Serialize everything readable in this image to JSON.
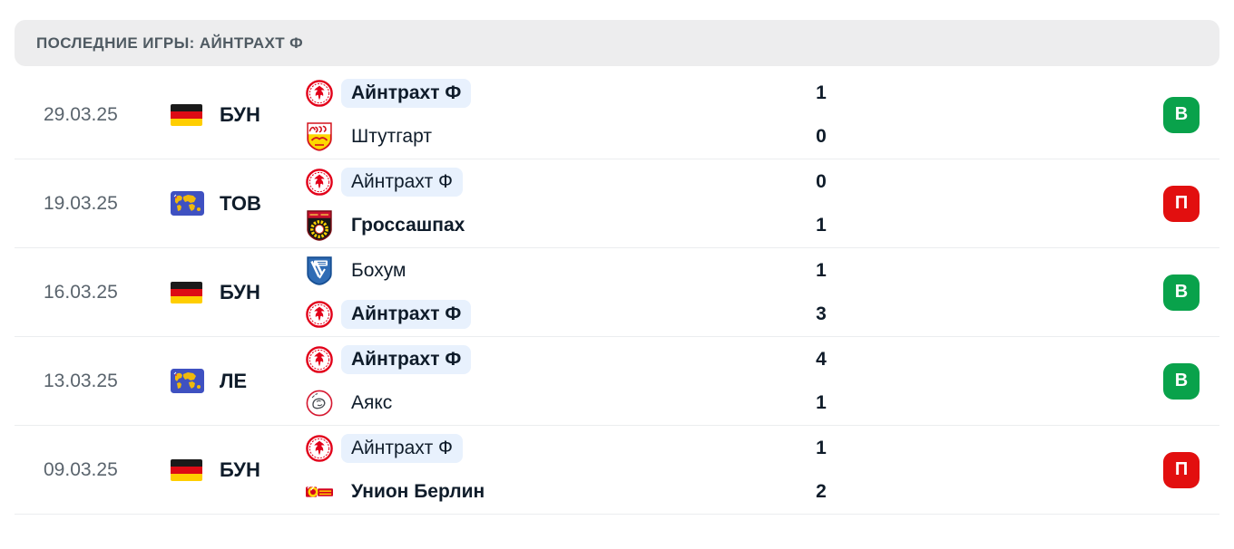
{
  "header": {
    "title": "ПОСЛЕДНИЕ ИГРЫ: АЙНТРАХТ Ф"
  },
  "colors": {
    "win_badge": "#09a24b",
    "loss_badge": "#e20f0f",
    "highlight_pill": "#e8f1fd",
    "header_bg": "#ededee"
  },
  "matches": [
    {
      "date": "29.03.25",
      "competition": {
        "code": "БУН",
        "icon": "germany-flag-icon"
      },
      "home": {
        "name": "Айнтрахт Ф",
        "logo": "eintracht-frankfurt-logo",
        "bold": true,
        "highlight": true,
        "score": "1"
      },
      "away": {
        "name": "Штутгарт",
        "logo": "stuttgart-logo",
        "bold": false,
        "highlight": false,
        "score": "0"
      },
      "result": {
        "label": "В",
        "type": "win"
      }
    },
    {
      "date": "19.03.25",
      "competition": {
        "code": "ТОВ",
        "icon": "world-map-icon"
      },
      "home": {
        "name": "Айнтрахт Ф",
        "logo": "eintracht-frankfurt-logo",
        "bold": false,
        "highlight": true,
        "score": "0"
      },
      "away": {
        "name": "Гроссашпах",
        "logo": "grossaspach-logo",
        "bold": true,
        "highlight": false,
        "score": "1"
      },
      "result": {
        "label": "П",
        "type": "loss"
      }
    },
    {
      "date": "16.03.25",
      "competition": {
        "code": "БУН",
        "icon": "germany-flag-icon"
      },
      "home": {
        "name": "Бохум",
        "logo": "bochum-logo",
        "bold": false,
        "highlight": false,
        "score": "1"
      },
      "away": {
        "name": "Айнтрахт Ф",
        "logo": "eintracht-frankfurt-logo",
        "bold": true,
        "highlight": true,
        "score": "3"
      },
      "result": {
        "label": "В",
        "type": "win"
      }
    },
    {
      "date": "13.03.25",
      "competition": {
        "code": "ЛЕ",
        "icon": "world-map-icon"
      },
      "home": {
        "name": "Айнтрахт Ф",
        "logo": "eintracht-frankfurt-logo",
        "bold": true,
        "highlight": true,
        "score": "4"
      },
      "away": {
        "name": "Аякс",
        "logo": "ajax-logo",
        "bold": false,
        "highlight": false,
        "score": "1"
      },
      "result": {
        "label": "В",
        "type": "win"
      }
    },
    {
      "date": "09.03.25",
      "competition": {
        "code": "БУН",
        "icon": "germany-flag-icon"
      },
      "home": {
        "name": "Айнтрахт Ф",
        "logo": "eintracht-frankfurt-logo",
        "bold": false,
        "highlight": true,
        "score": "1"
      },
      "away": {
        "name": "Унион Берлин",
        "logo": "union-berlin-logo",
        "bold": true,
        "highlight": false,
        "score": "2"
      },
      "result": {
        "label": "П",
        "type": "loss"
      }
    }
  ]
}
